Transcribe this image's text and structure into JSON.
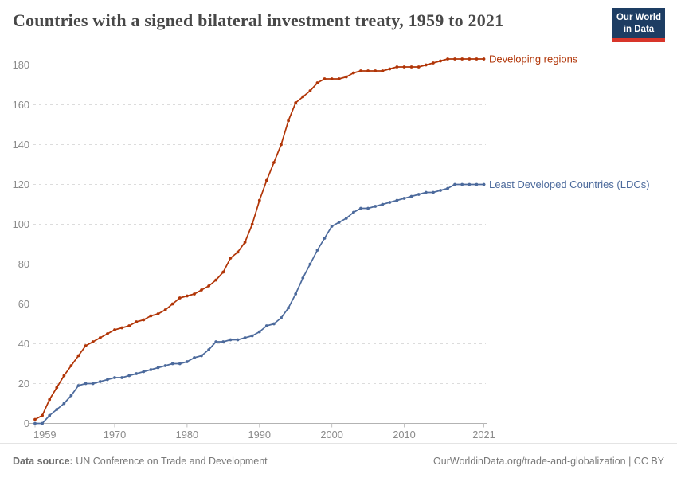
{
  "header": {
    "title": "Countries with a signed bilateral investment treaty, 1959 to 2021",
    "logo": {
      "line1": "Our World",
      "line2": "in Data",
      "bg_color": "#1d3d63",
      "bar_color": "#d8352a"
    }
  },
  "chart_data": {
    "type": "line",
    "title": "Countries with a signed bilateral investment treaty, 1959 to 2021",
    "xlabel": "",
    "ylabel": "",
    "xlim": [
      1959,
      2021
    ],
    "ylim": [
      0,
      180
    ],
    "x_ticks": [
      1959,
      1970,
      1980,
      1990,
      2000,
      2010,
      2021
    ],
    "y_ticks": [
      0,
      20,
      40,
      60,
      80,
      100,
      120,
      140,
      160,
      180
    ],
    "grid": "horizontal-dashed",
    "legend_position": "labels-at-line-end-right",
    "years": [
      1959,
      1960,
      1961,
      1962,
      1963,
      1964,
      1965,
      1966,
      1967,
      1968,
      1969,
      1970,
      1971,
      1972,
      1973,
      1974,
      1975,
      1976,
      1977,
      1978,
      1979,
      1980,
      1981,
      1982,
      1983,
      1984,
      1985,
      1986,
      1987,
      1988,
      1989,
      1990,
      1991,
      1992,
      1993,
      1994,
      1995,
      1996,
      1997,
      1998,
      1999,
      2000,
      2001,
      2002,
      2003,
      2004,
      2005,
      2006,
      2007,
      2008,
      2009,
      2010,
      2011,
      2012,
      2013,
      2014,
      2015,
      2016,
      2017,
      2018,
      2019,
      2020,
      2021
    ],
    "series": [
      {
        "name": "Developing regions",
        "color": "#B13507",
        "values": [
          2,
          4,
          12,
          18,
          24,
          29,
          34,
          39,
          41,
          43,
          45,
          47,
          48,
          49,
          51,
          52,
          54,
          55,
          57,
          60,
          63,
          64,
          65,
          67,
          69,
          72,
          76,
          83,
          86,
          91,
          100,
          112,
          122,
          131,
          140,
          152,
          161,
          164,
          167,
          171,
          173,
          173,
          173,
          174,
          176,
          177,
          177,
          177,
          177,
          178,
          179,
          179,
          179,
          179,
          180,
          181,
          182,
          183,
          183,
          183,
          183,
          183,
          183
        ]
      },
      {
        "name": "Least Developed Countries (LDCs)",
        "color": "#4C6A9C",
        "values": [
          0,
          0,
          4,
          7,
          10,
          14,
          19,
          20,
          20,
          21,
          22,
          23,
          23,
          24,
          25,
          26,
          27,
          28,
          29,
          30,
          30,
          31,
          33,
          34,
          37,
          41,
          41,
          42,
          42,
          43,
          44,
          46,
          49,
          50,
          53,
          58,
          65,
          73,
          80,
          87,
          93,
          99,
          101,
          103,
          106,
          108,
          108,
          109,
          110,
          111,
          112,
          113,
          114,
          115,
          116,
          116,
          117,
          118,
          120,
          120,
          120,
          120,
          120
        ]
      }
    ]
  },
  "footer": {
    "source_label": "Data source:",
    "source_text": " UN Conference on Trade and Development",
    "credit": "OurWorldinData.org/trade-and-globalization | CC BY"
  }
}
